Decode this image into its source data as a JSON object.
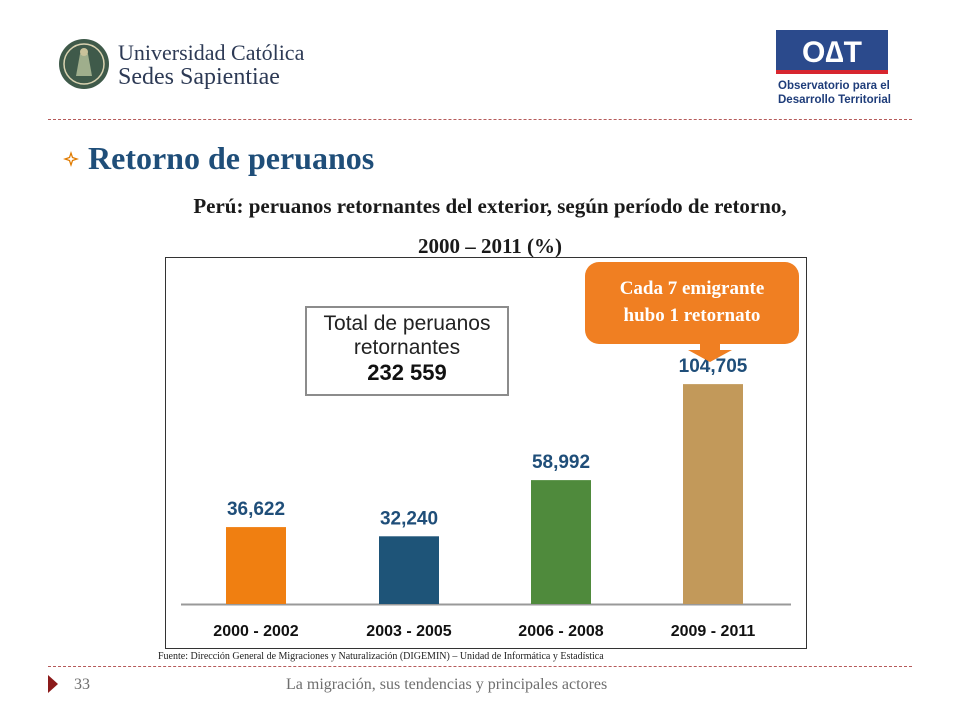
{
  "logos": {
    "ucss": {
      "line1": "Universidad Católica",
      "line2": "Sedes Sapientiae"
    },
    "odt": {
      "letters": "O∆T",
      "line1": "Observatorio para el",
      "line2": "Desarrollo Territorial",
      "colors": {
        "blue": "#2b4a8c",
        "red": "#d7262f"
      }
    }
  },
  "heading": "Retorno de peruanos",
  "subtitle": {
    "line1": "Perú: peruanos retornantes del exterior, según período de retorno,",
    "line2": "2000 – 2011 (%)"
  },
  "total_box": {
    "line1": "Total de peruanos",
    "line2": "retornantes",
    "value": "232 559"
  },
  "callout": {
    "line1": "Cada 7 emigrante",
    "line2": "hubo 1 retornato"
  },
  "chart_data": {
    "type": "bar",
    "categories": [
      "2000 - 2002",
      "2003 - 2005",
      "2006 - 2008",
      "2009 - 2011"
    ],
    "values": [
      36622,
      32240,
      58992,
      104705
    ],
    "data_labels": [
      "36,622",
      "32,240",
      "58,992",
      "104,705"
    ],
    "colors": [
      "#f07f11",
      "#1e5478",
      "#4f8a3c",
      "#c2995a"
    ],
    "ylim": [
      0,
      110000
    ],
    "grid": false
  },
  "source": "Fuente: Dirección General de Migraciones y Naturalización (DIGEMIN) – Unidad de Informática y Estadística",
  "footer": {
    "page": "33",
    "text": "La migración, sus tendencias y principales actores"
  }
}
